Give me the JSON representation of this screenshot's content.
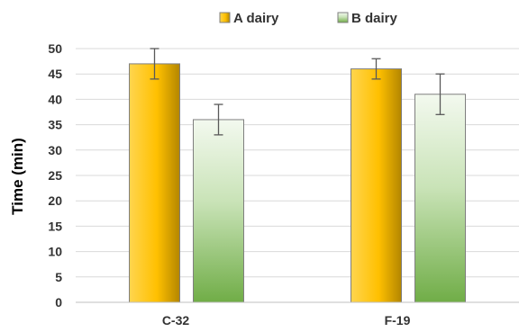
{
  "chart_data": {
    "type": "bar",
    "categories": [
      "C-32",
      "F-19"
    ],
    "series": [
      {
        "name": "A dairy",
        "values": [
          47,
          46
        ],
        "errors": [
          3,
          2
        ],
        "color_light": "#ffe08a",
        "color_mid": "#ffc000",
        "color_dark": "#b38600"
      },
      {
        "name": "B dairy",
        "values": [
          36,
          41
        ],
        "errors": [
          3,
          4
        ],
        "color_light": "#eaf4e4",
        "color_mid": "#a9d18e",
        "color_dark": "#70ad47"
      }
    ],
    "title": "",
    "xlabel": "",
    "ylabel": "Time (min)",
    "ylim": [
      0,
      50
    ],
    "yticks": [
      "0",
      "5",
      "10",
      "15",
      "20",
      "25",
      "30",
      "35",
      "40",
      "45",
      "50"
    ],
    "grid": true,
    "legend_position": "top-center"
  }
}
